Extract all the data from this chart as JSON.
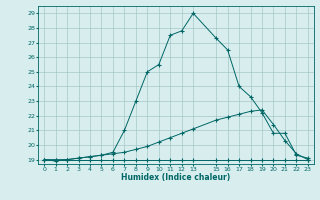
{
  "bg_color": "#d8eeee",
  "grid_color": "#9bbfbf",
  "line_color": "#006666",
  "x_label": "Humidex (Indice chaleur)",
  "ylim": [
    18.7,
    29.5
  ],
  "xlim": [
    -0.5,
    23.5
  ],
  "yticks": [
    19,
    20,
    21,
    22,
    23,
    24,
    25,
    26,
    27,
    28,
    29
  ],
  "xticks": [
    0,
    1,
    2,
    3,
    4,
    5,
    6,
    7,
    8,
    9,
    10,
    11,
    12,
    13,
    15,
    16,
    17,
    18,
    19,
    20,
    21,
    22,
    23
  ],
  "line1_x": [
    0,
    1,
    2,
    3,
    4,
    5,
    6,
    7,
    8,
    9,
    10,
    11,
    12,
    13,
    15,
    16,
    17,
    18,
    19,
    20,
    21,
    22,
    23
  ],
  "line1_y": [
    19.0,
    19.0,
    19.0,
    19.0,
    19.0,
    19.0,
    19.0,
    19.0,
    19.0,
    19.0,
    19.0,
    19.0,
    19.0,
    19.0,
    19.0,
    19.0,
    19.0,
    19.0,
    19.0,
    19.0,
    19.0,
    19.0,
    19.0
  ],
  "line2_x": [
    0,
    1,
    2,
    3,
    4,
    5,
    6,
    7,
    8,
    9,
    10,
    11,
    12,
    13,
    15,
    16,
    17,
    18,
    19,
    20,
    21,
    22,
    23
  ],
  "line2_y": [
    19.0,
    19.0,
    19.0,
    19.1,
    19.2,
    19.3,
    19.4,
    19.5,
    19.7,
    19.9,
    20.2,
    20.5,
    20.8,
    21.1,
    21.7,
    21.9,
    22.1,
    22.3,
    22.4,
    21.4,
    20.3,
    19.4,
    19.0
  ],
  "line3_x": [
    0,
    1,
    2,
    3,
    4,
    5,
    6,
    7,
    8,
    9,
    10,
    11,
    12,
    13,
    15,
    16,
    17,
    18,
    19,
    20,
    21,
    22,
    23
  ],
  "line3_y": [
    19.0,
    18.9,
    19.0,
    19.1,
    19.2,
    19.3,
    19.5,
    21.0,
    23.0,
    25.0,
    25.5,
    27.5,
    27.8,
    29.0,
    27.3,
    26.5,
    24.0,
    23.3,
    22.2,
    20.8,
    20.8,
    19.3,
    19.1
  ]
}
